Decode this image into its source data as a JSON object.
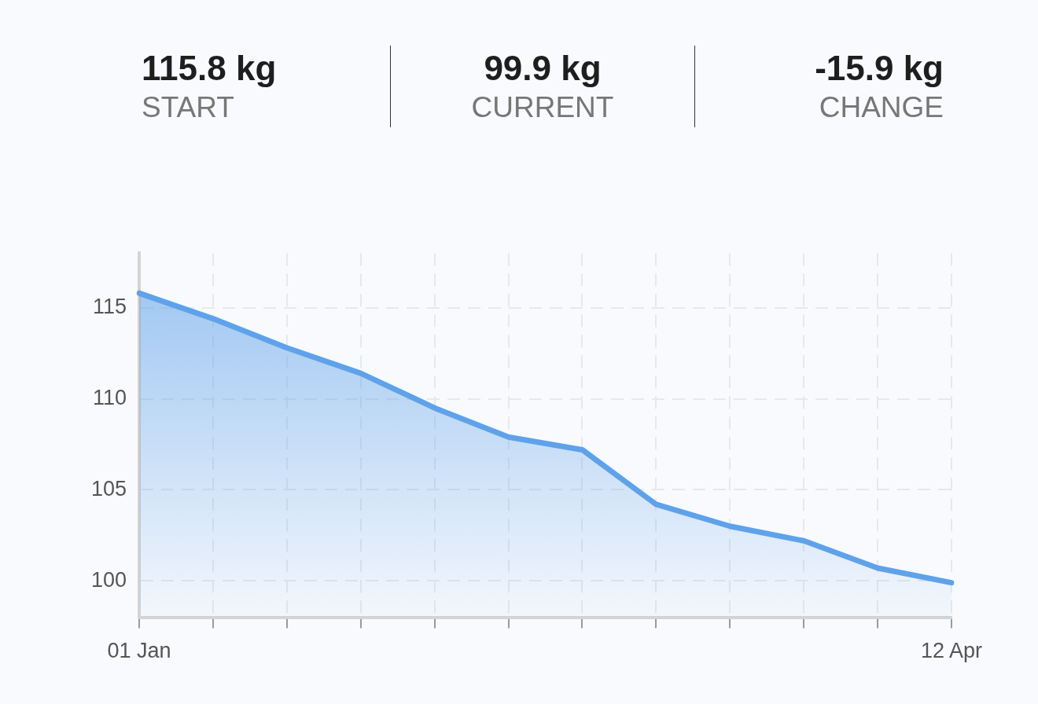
{
  "chart_data": {
    "type": "area",
    "annotations": [
      "115.8 kg",
      "START",
      "99.9 kg",
      "CURRENT",
      "-15.9 kg",
      "CHANGE"
    ],
    "categories": [
      "01 Jan",
      null,
      null,
      null,
      null,
      null,
      null,
      null,
      null,
      null,
      null,
      "12 Apr"
    ],
    "series": [
      {
        "color": "#5fa2ea",
        "values": [
          115.8,
          114.4,
          112.8,
          111.4,
          109.5,
          107.9,
          107.2,
          104.2,
          103.0,
          102.2,
          100.7,
          99.9
        ]
      }
    ],
    "ylim": [
      98,
      118
    ],
    "yticks": [
      100,
      105,
      110,
      115
    ],
    "grid": true,
    "legend": false,
    "marker": "none",
    "line_style": "solid"
  }
}
